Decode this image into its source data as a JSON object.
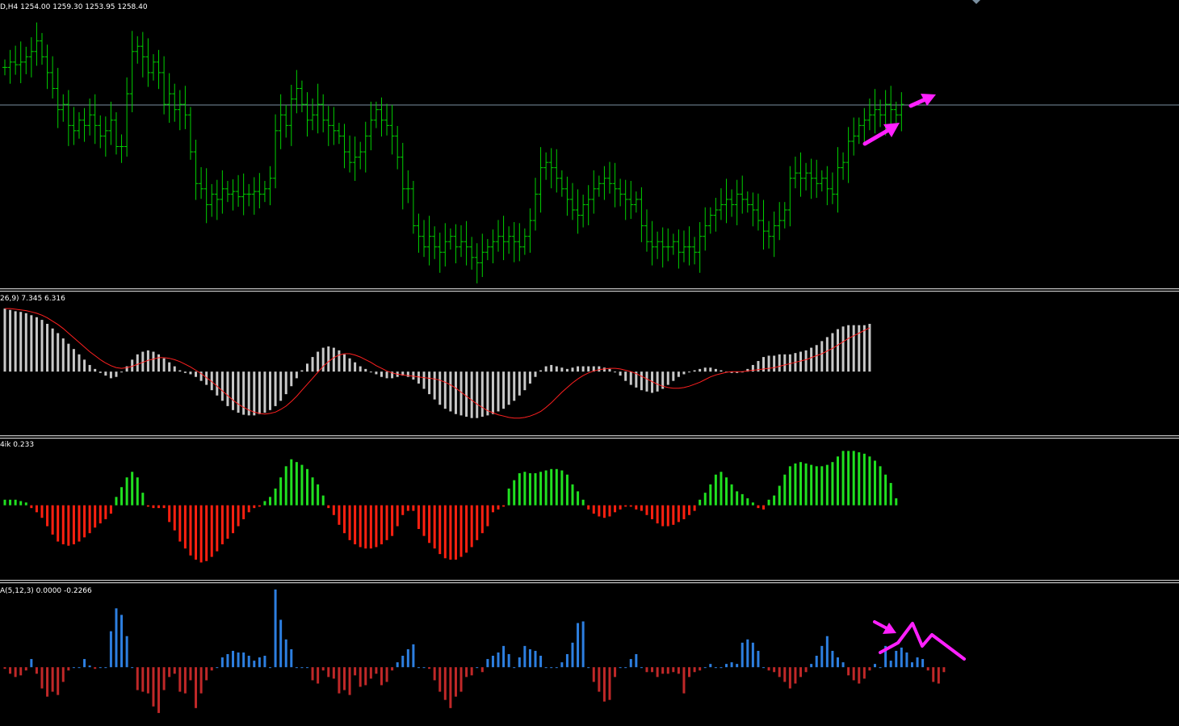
{
  "labels": {
    "price": "D,H4  1254.00 1259.30 1253.95 1258.40",
    "macd": "26,9) 7.345 6.316",
    "hist": "4ik 0.233",
    "osc": "A(5,12,3) 0.0000 -0.2266"
  },
  "colors": {
    "bar": "#00d000",
    "grid": "#7a8fa0",
    "sep": "#c0c0c0",
    "macd": "#c8c8c8",
    "signal": "#ff2020",
    "hist_up": "#20e020",
    "hist_dn": "#ff2010",
    "osc_up": "#2d7fe0",
    "osc_dn": "#c02828",
    "annot": "#ff20ff"
  },
  "chart_data": [
    {
      "type": "ohlc",
      "pane": "price",
      "ylim": [
        0,
        1
      ],
      "close": [
        0.8,
        0.82,
        0.81,
        0.82,
        0.84,
        0.86,
        0.9,
        0.84,
        0.78,
        0.72,
        0.64,
        0.66,
        0.58,
        0.56,
        0.6,
        0.58,
        0.62,
        0.58,
        0.54,
        0.56,
        0.6,
        0.5,
        0.5,
        0.7,
        0.86,
        0.88,
        0.84,
        0.78,
        0.82,
        0.78,
        0.66,
        0.7,
        0.64,
        0.66,
        0.62,
        0.48,
        0.36,
        0.34,
        0.28,
        0.32,
        0.3,
        0.34,
        0.32,
        0.33,
        0.31,
        0.32,
        0.32,
        0.33,
        0.32,
        0.34,
        0.38,
        0.56,
        0.62,
        0.58,
        0.68,
        0.72,
        0.66,
        0.6,
        0.62,
        0.66,
        0.6,
        0.58,
        0.56,
        0.54,
        0.48,
        0.44,
        0.46,
        0.48,
        0.54,
        0.6,
        0.64,
        0.6,
        0.58,
        0.54,
        0.46,
        0.34,
        0.34,
        0.2,
        0.16,
        0.12,
        0.16,
        0.12,
        0.1,
        0.14,
        0.16,
        0.12,
        0.14,
        0.12,
        0.08,
        0.06,
        0.1,
        0.12,
        0.14,
        0.16,
        0.14,
        0.16,
        0.14,
        0.12,
        0.16,
        0.22,
        0.32,
        0.42,
        0.44,
        0.42,
        0.38,
        0.34,
        0.3,
        0.26,
        0.24,
        0.28,
        0.3,
        0.34,
        0.36,
        0.38,
        0.36,
        0.34,
        0.32,
        0.3,
        0.28,
        0.3,
        0.2,
        0.14,
        0.12,
        0.14,
        0.12,
        0.12,
        0.14,
        0.1,
        0.12,
        0.12,
        0.1,
        0.16,
        0.2,
        0.24,
        0.26,
        0.28,
        0.3,
        0.28,
        0.32,
        0.3,
        0.28,
        0.26,
        0.22,
        0.18,
        0.16,
        0.2,
        0.22,
        0.26,
        0.38,
        0.4,
        0.38,
        0.4,
        0.38,
        0.36,
        0.38,
        0.34,
        0.32,
        0.42,
        0.44,
        0.52,
        0.54,
        0.58,
        0.6,
        0.62,
        0.64,
        0.62,
        0.66,
        0.64,
        0.62,
        0.66
      ]
    },
    {
      "type": "bar",
      "pane": "macd",
      "ylim": [
        -0.85,
        1.0
      ],
      "values": [
        0.95,
        0.93,
        0.91,
        0.9,
        0.88,
        0.85,
        0.82,
        0.78,
        0.72,
        0.65,
        0.58,
        0.5,
        0.42,
        0.34,
        0.26,
        0.18,
        0.1,
        0.04,
        -0.02,
        -0.06,
        -0.1,
        -0.08,
        0.0,
        0.08,
        0.18,
        0.26,
        0.3,
        0.32,
        0.3,
        0.26,
        0.2,
        0.14,
        0.08,
        0.02,
        -0.02,
        -0.04,
        -0.08,
        -0.14,
        -0.2,
        -0.28,
        -0.36,
        -0.44,
        -0.52,
        -0.58,
        -0.62,
        -0.65,
        -0.66,
        -0.66,
        -0.64,
        -0.62,
        -0.58,
        -0.52,
        -0.44,
        -0.34,
        -0.22,
        -0.1,
        0.02,
        0.12,
        0.22,
        0.3,
        0.36,
        0.38,
        0.36,
        0.32,
        0.26,
        0.2,
        0.14,
        0.08,
        0.04,
        0.0,
        -0.04,
        -0.08,
        -0.1,
        -0.1,
        -0.08,
        -0.06,
        -0.08,
        -0.12,
        -0.18,
        -0.26,
        -0.34,
        -0.42,
        -0.5,
        -0.56,
        -0.6,
        -0.64,
        -0.66,
        -0.68,
        -0.7,
        -0.7,
        -0.68,
        -0.66,
        -0.64,
        -0.6,
        -0.56,
        -0.5,
        -0.44,
        -0.36,
        -0.28,
        -0.18,
        -0.08,
        0.02,
        0.08,
        0.1,
        0.08,
        0.06,
        0.04,
        0.06,
        0.08,
        0.08,
        0.08,
        0.08,
        0.08,
        0.06,
        0.04,
        0.0,
        -0.06,
        -0.14,
        -0.2,
        -0.24,
        -0.28,
        -0.3,
        -0.32,
        -0.3,
        -0.26,
        -0.2,
        -0.14,
        -0.08,
        -0.04,
        0.0,
        0.02,
        0.04,
        0.06,
        0.06,
        0.04,
        0.02,
        0.0,
        -0.02,
        -0.02,
        0.0,
        0.04,
        0.1,
        0.16,
        0.22,
        0.24,
        0.24,
        0.26,
        0.26,
        0.26,
        0.28,
        0.3,
        0.32,
        0.36,
        0.4,
        0.46,
        0.52,
        0.58,
        0.64,
        0.68,
        0.7,
        0.7,
        0.7,
        0.7,
        0.72
      ],
      "signal": [
        0.95,
        0.95,
        0.94,
        0.93,
        0.92,
        0.9,
        0.88,
        0.85,
        0.81,
        0.76,
        0.71,
        0.65,
        0.58,
        0.51,
        0.44,
        0.37,
        0.3,
        0.24,
        0.18,
        0.13,
        0.09,
        0.06,
        0.05,
        0.06,
        0.08,
        0.11,
        0.14,
        0.17,
        0.19,
        0.21,
        0.21,
        0.2,
        0.18,
        0.15,
        0.11,
        0.07,
        0.02,
        -0.03,
        -0.09,
        -0.15,
        -0.22,
        -0.29,
        -0.36,
        -0.43,
        -0.49,
        -0.54,
        -0.58,
        -0.61,
        -0.63,
        -0.64,
        -0.63,
        -0.61,
        -0.57,
        -0.52,
        -0.45,
        -0.37,
        -0.28,
        -0.19,
        -0.1,
        -0.01,
        0.08,
        0.15,
        0.21,
        0.25,
        0.27,
        0.27,
        0.25,
        0.22,
        0.18,
        0.14,
        0.09,
        0.05,
        0.01,
        -0.02,
        -0.04,
        -0.05,
        -0.06,
        -0.07,
        -0.08,
        -0.09,
        -0.1,
        -0.11,
        -0.13,
        -0.16,
        -0.2,
        -0.25,
        -0.31,
        -0.37,
        -0.43,
        -0.49,
        -0.54,
        -0.59,
        -0.62,
        -0.65,
        -0.67,
        -0.69,
        -0.7,
        -0.7,
        -0.69,
        -0.67,
        -0.64,
        -0.6,
        -0.54,
        -0.47,
        -0.39,
        -0.31,
        -0.24,
        -0.17,
        -0.11,
        -0.06,
        -0.02,
        0.01,
        0.03,
        0.04,
        0.05,
        0.05,
        0.04,
        0.02,
        0.0,
        -0.03,
        -0.07,
        -0.11,
        -0.15,
        -0.19,
        -0.22,
        -0.24,
        -0.25,
        -0.25,
        -0.24,
        -0.22,
        -0.19,
        -0.16,
        -0.12,
        -0.08,
        -0.05,
        -0.03,
        -0.01,
        0.0,
        0.0,
        0.0,
        0.01,
        0.02,
        0.03,
        0.04,
        0.05,
        0.06,
        0.08,
        0.1,
        0.12,
        0.14,
        0.16,
        0.18,
        0.21,
        0.24,
        0.27,
        0.31,
        0.35,
        0.4,
        0.45,
        0.5,
        0.54,
        0.58,
        0.62,
        0.66
      ]
    },
    {
      "type": "bar",
      "pane": "hist",
      "ylim": [
        -1.0,
        0.9
      ],
      "values": [
        0.08,
        0.08,
        0.08,
        0.06,
        0.04,
        -0.04,
        -0.1,
        -0.18,
        -0.3,
        -0.42,
        -0.52,
        -0.56,
        -0.58,
        -0.56,
        -0.52,
        -0.46,
        -0.4,
        -0.32,
        -0.26,
        -0.2,
        -0.12,
        0.12,
        0.26,
        0.4,
        0.48,
        0.4,
        0.18,
        -0.02,
        -0.04,
        -0.04,
        -0.04,
        -0.24,
        -0.36,
        -0.52,
        -0.62,
        -0.72,
        -0.78,
        -0.82,
        -0.8,
        -0.74,
        -0.66,
        -0.56,
        -0.48,
        -0.4,
        -0.3,
        -0.2,
        -0.1,
        -0.04,
        -0.02,
        0.06,
        0.12,
        0.24,
        0.4,
        0.56,
        0.66,
        0.62,
        0.58,
        0.52,
        0.4,
        0.3,
        0.14,
        -0.04,
        -0.14,
        -0.28,
        -0.4,
        -0.5,
        -0.56,
        -0.6,
        -0.62,
        -0.62,
        -0.6,
        -0.56,
        -0.5,
        -0.44,
        -0.3,
        -0.14,
        -0.08,
        -0.08,
        -0.34,
        -0.44,
        -0.54,
        -0.62,
        -0.7,
        -0.76,
        -0.78,
        -0.78,
        -0.74,
        -0.68,
        -0.6,
        -0.5,
        -0.4,
        -0.3,
        -0.1,
        -0.06,
        -0.02,
        0.24,
        0.36,
        0.46,
        0.48,
        0.46,
        0.46,
        0.48,
        0.5,
        0.52,
        0.52,
        0.5,
        0.44,
        0.3,
        0.2,
        0.08,
        -0.06,
        -0.12,
        -0.16,
        -0.18,
        -0.16,
        -0.1,
        -0.06,
        -0.02,
        -0.02,
        -0.06,
        -0.08,
        -0.14,
        -0.2,
        -0.26,
        -0.3,
        -0.3,
        -0.28,
        -0.24,
        -0.2,
        -0.14,
        -0.08,
        0.08,
        0.18,
        0.3,
        0.44,
        0.48,
        0.4,
        0.3,
        0.2,
        0.16,
        0.1,
        0.04,
        -0.04,
        -0.06,
        0.08,
        0.14,
        0.28,
        0.44,
        0.56,
        0.6,
        0.62,
        0.6,
        0.58,
        0.56,
        0.56,
        0.58,
        0.62,
        0.7,
        0.78,
        0.78,
        0.78,
        0.76,
        0.74,
        0.7,
        0.64,
        0.56,
        0.44,
        0.32,
        0.1
      ]
    },
    {
      "type": "bar",
      "pane": "osc",
      "ylim": [
        -0.65,
        0.95
      ],
      "values": [
        -0.02,
        -0.08,
        -0.12,
        -0.1,
        -0.04,
        0.1,
        -0.08,
        -0.26,
        -0.36,
        -0.3,
        -0.34,
        -0.18,
        -0.04,
        0.0,
        0.0,
        0.1,
        0.02,
        -0.02,
        0.0,
        0.0,
        0.44,
        0.72,
        0.64,
        0.38,
        0.0,
        -0.28,
        -0.3,
        -0.32,
        -0.48,
        -0.56,
        -0.28,
        -0.12,
        -0.08,
        -0.3,
        -0.32,
        -0.16,
        -0.5,
        -0.32,
        -0.16,
        -0.04,
        0.0,
        0.12,
        0.16,
        0.2,
        0.18,
        0.18,
        0.14,
        0.08,
        0.12,
        0.14,
        0.0,
        0.95,
        0.58,
        0.34,
        0.22,
        0.0,
        0.0,
        0.0,
        -0.16,
        -0.2,
        -0.04,
        -0.12,
        -0.14,
        -0.32,
        -0.28,
        -0.34,
        -0.1,
        -0.24,
        -0.22,
        -0.14,
        -0.08,
        -0.22,
        -0.18,
        -0.04,
        0.06,
        0.14,
        0.22,
        0.28,
        0.0,
        0.0,
        -0.02,
        -0.16,
        -0.3,
        -0.4,
        -0.5,
        -0.36,
        -0.3,
        -0.12,
        -0.1,
        0.0,
        -0.06,
        0.1,
        0.14,
        0.18,
        0.26,
        0.16,
        0.0,
        0.12,
        0.26,
        0.22,
        0.2,
        0.14,
        0.0,
        0.0,
        0.0,
        0.06,
        0.16,
        0.3,
        0.54,
        0.56,
        0.0,
        -0.18,
        -0.3,
        -0.42,
        -0.4,
        -0.12,
        0.0,
        0.0,
        0.1,
        0.16,
        0.0,
        -0.06,
        -0.06,
        -0.12,
        -0.08,
        -0.08,
        -0.06,
        -0.08,
        -0.32,
        -0.12,
        -0.06,
        -0.04,
        0.0,
        0.04,
        0.0,
        0.0,
        0.04,
        0.06,
        0.04,
        0.3,
        0.34,
        0.3,
        0.2,
        0.0,
        -0.04,
        -0.06,
        -0.12,
        -0.18,
        -0.26,
        -0.2,
        -0.12,
        -0.06,
        0.04,
        0.14,
        0.26,
        0.38,
        0.2,
        0.12,
        0.06,
        -0.1,
        -0.16,
        -0.2,
        -0.14,
        -0.04,
        0.04,
        0.0,
        0.26,
        0.08,
        0.2,
        0.24,
        0.18,
        0.06,
        0.12,
        0.1,
        -0.04,
        -0.18,
        -0.2,
        -0.06
      ]
    }
  ]
}
